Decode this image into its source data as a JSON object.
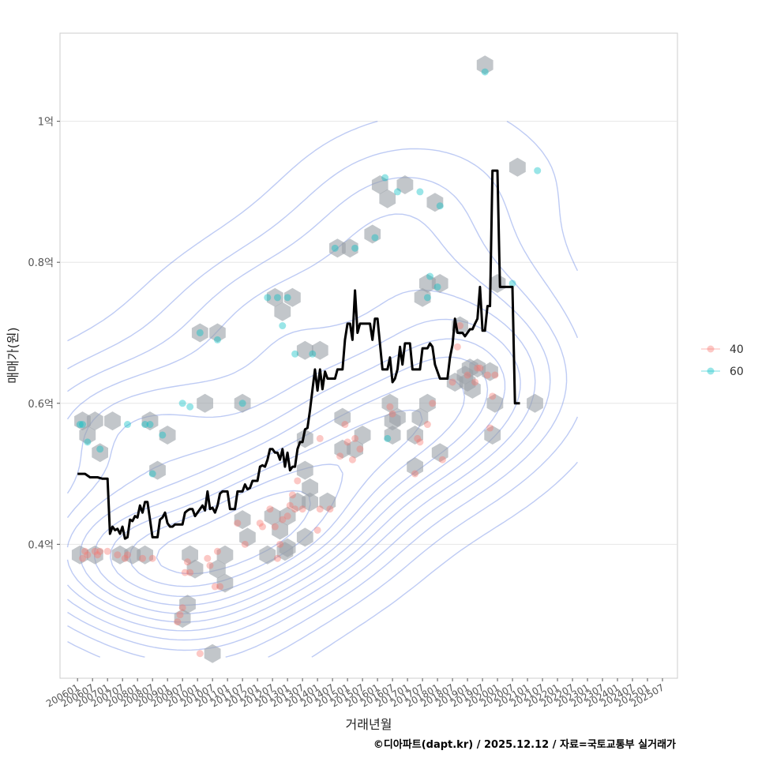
{
  "chart_data": {
    "type": "scatter",
    "xlabel": "거래년월",
    "ylabel": "매매가(원)",
    "caption": "©디아파트(dapt.kr) / 2025.12.12 / 자료=국토교통부 실거래가",
    "x_unit": "months since 2006-01",
    "x_range": [
      -7,
      240
    ],
    "ylim": [
      0.21,
      1.125
    ],
    "y_ticks": [
      {
        "value": 0.4,
        "label": "0.4억"
      },
      {
        "value": 0.6,
        "label": "0.6억"
      },
      {
        "value": 0.8,
        "label": "0.8억"
      },
      {
        "value": 1.0,
        "label": "1억"
      }
    ],
    "x_ticks": [
      "200601",
      "200607",
      "200701",
      "200707",
      "200801",
      "200807",
      "200901",
      "200907",
      "201001",
      "201007",
      "201101",
      "201107",
      "201201",
      "201207",
      "201301",
      "201307",
      "201401",
      "201407",
      "201501",
      "201507",
      "201601",
      "201607",
      "201701",
      "201707",
      "201801",
      "201807",
      "201901",
      "201907",
      "202001",
      "202007",
      "202101",
      "202107",
      "202201",
      "202207",
      "202301",
      "202307",
      "202401",
      "202407",
      "202501",
      "202507"
    ],
    "legend": {
      "placement": "right",
      "entries": [
        {
          "name": "40",
          "color": "#F8766D"
        },
        {
          "name": "60",
          "color": "#00BFC4"
        }
      ]
    },
    "colors": {
      "s40": "#F8766D",
      "s60": "#00BFC4",
      "line": "#000000",
      "contour": "#6E8BE6",
      "hex": "#9aa0a6",
      "grid": "#e6e6e6"
    },
    "series": [
      {
        "name": "40",
        "points": [
          [
            2,
            0.38
          ],
          [
            3,
            0.39
          ],
          [
            4,
            0.385
          ],
          [
            7,
            0.39
          ],
          [
            8,
            0.385
          ],
          [
            9,
            0.39
          ],
          [
            12,
            0.39
          ],
          [
            16,
            0.385
          ],
          [
            19,
            0.38
          ],
          [
            20,
            0.385
          ],
          [
            26,
            0.38
          ],
          [
            30,
            0.38
          ],
          [
            42,
            0.31
          ],
          [
            40,
            0.29
          ],
          [
            41,
            0.3
          ],
          [
            44,
            0.375
          ],
          [
            45,
            0.36
          ],
          [
            43,
            0.36
          ],
          [
            49,
            0.245
          ],
          [
            52,
            0.38
          ],
          [
            53,
            0.37
          ],
          [
            56,
            0.39
          ],
          [
            55,
            0.34
          ],
          [
            57,
            0.34
          ],
          [
            64,
            0.43
          ],
          [
            67,
            0.4
          ],
          [
            73,
            0.43
          ],
          [
            74,
            0.425
          ],
          [
            77,
            0.45
          ],
          [
            79,
            0.425
          ],
          [
            80,
            0.38
          ],
          [
            81,
            0.4
          ],
          [
            82,
            0.435
          ],
          [
            84,
            0.44
          ],
          [
            85,
            0.455
          ],
          [
            86,
            0.47
          ],
          [
            87,
            0.45
          ],
          [
            88,
            0.49
          ],
          [
            90,
            0.45
          ],
          [
            96,
            0.42
          ],
          [
            97,
            0.55
          ],
          [
            97,
            0.45
          ],
          [
            101,
            0.45
          ],
          [
            105,
            0.525
          ],
          [
            107,
            0.57
          ],
          [
            108,
            0.545
          ],
          [
            110,
            0.52
          ],
          [
            111,
            0.55
          ],
          [
            113,
            0.535
          ],
          [
            125,
            0.595
          ],
          [
            126,
            0.585
          ],
          [
            135,
            0.5
          ],
          [
            136,
            0.55
          ],
          [
            137,
            0.545
          ],
          [
            140,
            0.57
          ],
          [
            142,
            0.6
          ],
          [
            146,
            0.52
          ],
          [
            150,
            0.63
          ],
          [
            152,
            0.68
          ],
          [
            153,
            0.71
          ],
          [
            156,
            0.64
          ],
          [
            159,
            0.63
          ],
          [
            160,
            0.65
          ],
          [
            161,
            0.65
          ],
          [
            164,
            0.64
          ],
          [
            165,
            0.565
          ],
          [
            166,
            0.61
          ],
          [
            167,
            0.64
          ]
        ]
      },
      {
        "name": "60",
        "points": [
          [
            1,
            0.57
          ],
          [
            2,
            0.57
          ],
          [
            4,
            0.545
          ],
          [
            9,
            0.535
          ],
          [
            20,
            0.57
          ],
          [
            27,
            0.57
          ],
          [
            29,
            0.57
          ],
          [
            30,
            0.5
          ],
          [
            34,
            0.555
          ],
          [
            42,
            0.6
          ],
          [
            45,
            0.595
          ],
          [
            49,
            0.7
          ],
          [
            56,
            0.69
          ],
          [
            66,
            0.6
          ],
          [
            76,
            0.75
          ],
          [
            80,
            0.75
          ],
          [
            82,
            0.71
          ],
          [
            84,
            0.75
          ],
          [
            87,
            0.67
          ],
          [
            94,
            0.67
          ],
          [
            103,
            0.82
          ],
          [
            111,
            0.82
          ],
          [
            119,
            0.835
          ],
          [
            123,
            0.92
          ],
          [
            128,
            0.9
          ],
          [
            124,
            0.55
          ],
          [
            137,
            0.9
          ],
          [
            140,
            0.75
          ],
          [
            141,
            0.78
          ],
          [
            144,
            0.765
          ],
          [
            145,
            0.88
          ],
          [
            163,
            1.07
          ],
          [
            174,
            0.77
          ],
          [
            184,
            0.93
          ]
        ]
      }
    ],
    "hexbins": [
      [
        1,
        0.385
      ],
      [
        7,
        0.385
      ],
      [
        2,
        0.575
      ],
      [
        4,
        0.555
      ],
      [
        7,
        0.575
      ],
      [
        9,
        0.53
      ],
      [
        14,
        0.575
      ],
      [
        17,
        0.385
      ],
      [
        22,
        0.385
      ],
      [
        27,
        0.385
      ],
      [
        29,
        0.575
      ],
      [
        32,
        0.505
      ],
      [
        36,
        0.555
      ],
      [
        42,
        0.295
      ],
      [
        44,
        0.315
      ],
      [
        45,
        0.385
      ],
      [
        47,
        0.365
      ],
      [
        49,
        0.7
      ],
      [
        51,
        0.6
      ],
      [
        54,
        0.245
      ],
      [
        56,
        0.7
      ],
      [
        56,
        0.365
      ],
      [
        59,
        0.385
      ],
      [
        59,
        0.345
      ],
      [
        66,
        0.6
      ],
      [
        66,
        0.435
      ],
      [
        68,
        0.41
      ],
      [
        76,
        0.385
      ],
      [
        78,
        0.44
      ],
      [
        79,
        0.75
      ],
      [
        81,
        0.42
      ],
      [
        82,
        0.73
      ],
      [
        83,
        0.39
      ],
      [
        84,
        0.395
      ],
      [
        84,
        0.44
      ],
      [
        86,
        0.75
      ],
      [
        88,
        0.46
      ],
      [
        91,
        0.505
      ],
      [
        91,
        0.55
      ],
      [
        91,
        0.675
      ],
      [
        91,
        0.41
      ],
      [
        93,
        0.46
      ],
      [
        93,
        0.48
      ],
      [
        97,
        0.675
      ],
      [
        100,
        0.46
      ],
      [
        104,
        0.82
      ],
      [
        106,
        0.58
      ],
      [
        106,
        0.535
      ],
      [
        109,
        0.82
      ],
      [
        111,
        0.535
      ],
      [
        114,
        0.555
      ],
      [
        118,
        0.84
      ],
      [
        121,
        0.91
      ],
      [
        124,
        0.89
      ],
      [
        125,
        0.6
      ],
      [
        126,
        0.575
      ],
      [
        126,
        0.555
      ],
      [
        128,
        0.58
      ],
      [
        131,
        0.91
      ],
      [
        135,
        0.555
      ],
      [
        135,
        0.51
      ],
      [
        137,
        0.58
      ],
      [
        138,
        0.75
      ],
      [
        140,
        0.77
      ],
      [
        140,
        0.6
      ],
      [
        143,
        0.885
      ],
      [
        145,
        0.77
      ],
      [
        145,
        0.53
      ],
      [
        151,
        0.63
      ],
      [
        153,
        0.71
      ],
      [
        155,
        0.64
      ],
      [
        156,
        0.63
      ],
      [
        157,
        0.65
      ],
      [
        158,
        0.62
      ],
      [
        160,
        0.65
      ],
      [
        163,
        1.08
      ],
      [
        165,
        0.645
      ],
      [
        166,
        0.555
      ],
      [
        167,
        0.6
      ],
      [
        168,
        0.77
      ],
      [
        176,
        0.935
      ],
      [
        183,
        0.6
      ]
    ],
    "median_line": [
      [
        0,
        0.5
      ],
      [
        3,
        0.5
      ],
      [
        5,
        0.495
      ],
      [
        8,
        0.495
      ],
      [
        10,
        0.493
      ],
      [
        12,
        0.493
      ],
      [
        13,
        0.415
      ],
      [
        14,
        0.425
      ],
      [
        15,
        0.42
      ],
      [
        16,
        0.422
      ],
      [
        17,
        0.415
      ],
      [
        18,
        0.425
      ],
      [
        19,
        0.408
      ],
      [
        20,
        0.41
      ],
      [
        21,
        0.435
      ],
      [
        22,
        0.433
      ],
      [
        23,
        0.44
      ],
      [
        24,
        0.438
      ],
      [
        25,
        0.455
      ],
      [
        26,
        0.445
      ],
      [
        27,
        0.46
      ],
      [
        28,
        0.46
      ],
      [
        29,
        0.435
      ],
      [
        30,
        0.41
      ],
      [
        32,
        0.41
      ],
      [
        33,
        0.435
      ],
      [
        34,
        0.438
      ],
      [
        35,
        0.445
      ],
      [
        36,
        0.43
      ],
      [
        37,
        0.425
      ],
      [
        38,
        0.425
      ],
      [
        39,
        0.428
      ],
      [
        42,
        0.428
      ],
      [
        43,
        0.445
      ],
      [
        44,
        0.448
      ],
      [
        45,
        0.45
      ],
      [
        46,
        0.45
      ],
      [
        47,
        0.44
      ],
      [
        48,
        0.445
      ],
      [
        49,
        0.45
      ],
      [
        50,
        0.455
      ],
      [
        51,
        0.448
      ],
      [
        52,
        0.475
      ],
      [
        53,
        0.45
      ],
      [
        54,
        0.452
      ],
      [
        55,
        0.445
      ],
      [
        56,
        0.455
      ],
      [
        57,
        0.472
      ],
      [
        58,
        0.475
      ],
      [
        60,
        0.475
      ],
      [
        61,
        0.45
      ],
      [
        62,
        0.45
      ],
      [
        63,
        0.45
      ],
      [
        64,
        0.475
      ],
      [
        66,
        0.475
      ],
      [
        67,
        0.485
      ],
      [
        68,
        0.478
      ],
      [
        69,
        0.48
      ],
      [
        70,
        0.49
      ],
      [
        72,
        0.49
      ],
      [
        73,
        0.51
      ],
      [
        74,
        0.512
      ],
      [
        75,
        0.51
      ],
      [
        76,
        0.52
      ],
      [
        77,
        0.535
      ],
      [
        78,
        0.535
      ],
      [
        79,
        0.53
      ],
      [
        80,
        0.53
      ],
      [
        81,
        0.52
      ],
      [
        82,
        0.535
      ],
      [
        83,
        0.51
      ],
      [
        84,
        0.53
      ],
      [
        85,
        0.505
      ],
      [
        86,
        0.51
      ],
      [
        87,
        0.51
      ],
      [
        88,
        0.535
      ],
      [
        89,
        0.545
      ],
      [
        90,
        0.545
      ],
      [
        91,
        0.563
      ],
      [
        92,
        0.565
      ],
      [
        93,
        0.59
      ],
      [
        94,
        0.62
      ],
      [
        95,
        0.648
      ],
      [
        96,
        0.618
      ],
      [
        97,
        0.648
      ],
      [
        98,
        0.62
      ],
      [
        99,
        0.645
      ],
      [
        100,
        0.635
      ],
      [
        101,
        0.635
      ],
      [
        103,
        0.635
      ],
      [
        104,
        0.648
      ],
      [
        106,
        0.648
      ],
      [
        107,
        0.69
      ],
      [
        108,
        0.713
      ],
      [
        109,
        0.713
      ],
      [
        110,
        0.69
      ],
      [
        111,
        0.76
      ],
      [
        112,
        0.7
      ],
      [
        113,
        0.713
      ],
      [
        117,
        0.713
      ],
      [
        118,
        0.69
      ],
      [
        119,
        0.72
      ],
      [
        120,
        0.72
      ],
      [
        122,
        0.648
      ],
      [
        124,
        0.648
      ],
      [
        125,
        0.665
      ],
      [
        126,
        0.63
      ],
      [
        127,
        0.635
      ],
      [
        128,
        0.648
      ],
      [
        129,
        0.68
      ],
      [
        130,
        0.655
      ],
      [
        131,
        0.685
      ],
      [
        133,
        0.685
      ],
      [
        134,
        0.648
      ],
      [
        137,
        0.648
      ],
      [
        138,
        0.678
      ],
      [
        140,
        0.678
      ],
      [
        141,
        0.685
      ],
      [
        142,
        0.68
      ],
      [
        143,
        0.655
      ],
      [
        145,
        0.635
      ],
      [
        148,
        0.635
      ],
      [
        149,
        0.665
      ],
      [
        150,
        0.683
      ],
      [
        151,
        0.72
      ],
      [
        152,
        0.7
      ],
      [
        154,
        0.7
      ],
      [
        155,
        0.695
      ],
      [
        157,
        0.705
      ],
      [
        158,
        0.705
      ],
      [
        159,
        0.713
      ],
      [
        160,
        0.72
      ],
      [
        161,
        0.765
      ],
      [
        162,
        0.703
      ],
      [
        163,
        0.703
      ],
      [
        164,
        0.738
      ],
      [
        165,
        0.738
      ],
      [
        166,
        0.93
      ],
      [
        168,
        0.93
      ],
      [
        169,
        0.765
      ],
      [
        174,
        0.765
      ],
      [
        175,
        0.6
      ],
      [
        177,
        0.6
      ]
    ]
  }
}
